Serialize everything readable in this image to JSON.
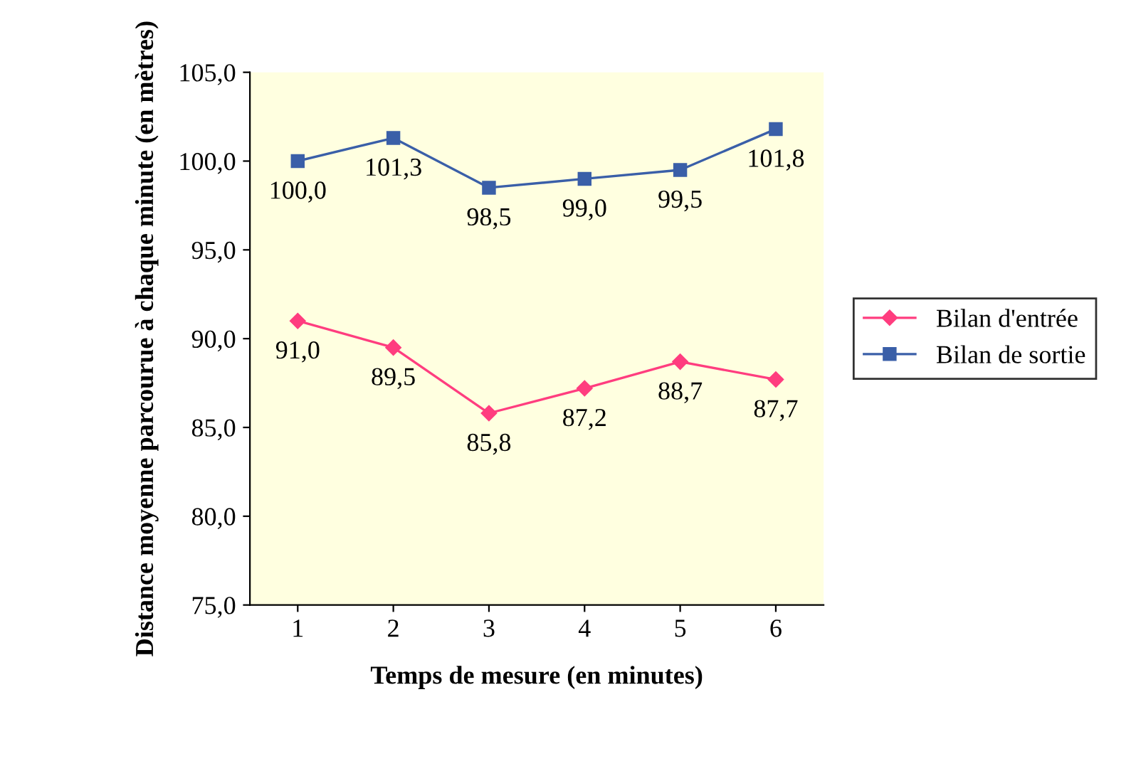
{
  "chart_data": {
    "type": "line",
    "xlabel": "Temps de mesure (en minutes)",
    "ylabel": "Distance moyenne parcourue à chaque minute (en mètres)",
    "categories": [
      "1",
      "2",
      "3",
      "4",
      "5",
      "6"
    ],
    "series": [
      {
        "name": "Bilan d'entrée",
        "color": "#ff3d7f",
        "marker": "diamond",
        "values": [
          91.0,
          89.5,
          85.8,
          87.2,
          88.7,
          87.7
        ],
        "value_labels": [
          "91,0",
          "89,5",
          "85,8",
          "87,2",
          "88,7",
          "87,7"
        ]
      },
      {
        "name": "Bilan de sortie",
        "color": "#3a5fa8",
        "marker": "square",
        "values": [
          100.0,
          101.3,
          98.5,
          99.0,
          99.5,
          101.8
        ],
        "value_labels": [
          "100,0",
          "101,3",
          "98,5",
          "99,0",
          "99,5",
          "101,8"
        ]
      }
    ],
    "ylim": [
      75,
      105
    ],
    "yticks": [
      {
        "value": 75,
        "label": "75,0"
      },
      {
        "value": 80,
        "label": "80,0"
      },
      {
        "value": 85,
        "label": "85,0"
      },
      {
        "value": 90,
        "label": "90,0"
      },
      {
        "value": 95,
        "label": "95,0"
      },
      {
        "value": 100,
        "label": "100,0"
      },
      {
        "value": 105,
        "label": "105,0"
      }
    ],
    "grid": false,
    "legend": "right",
    "line_style": "solid"
  }
}
